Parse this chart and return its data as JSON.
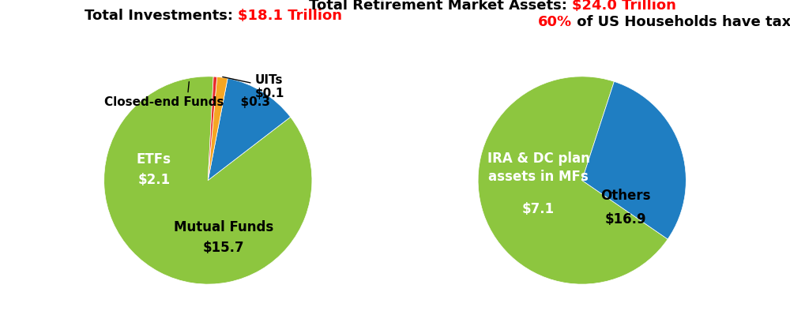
{
  "chart1": {
    "title_black": "Total Investments: ",
    "title_red": "$18.1 Trillion",
    "slices": [
      15.7,
      2.1,
      0.3,
      0.1
    ],
    "colors": [
      "#8DC63F",
      "#1F7EC2",
      "#F5A623",
      "#E82C2C"
    ],
    "labels": [
      "Mutual Funds",
      "ETFs",
      "Closed-end Funds",
      "UITs"
    ],
    "values_str": [
      "$15.7",
      "$2.1",
      "$0.3",
      "$0.1"
    ],
    "startangle": 87
  },
  "chart2": {
    "title_black1": "Total Retirement Market Assets: ",
    "title_red1": "$24.0 Trillion",
    "title_line2_red": "60%",
    "title_line2_black": " of US Households have tax-advantaged savings",
    "slices": [
      16.9,
      7.1
    ],
    "colors": [
      "#8DC63F",
      "#1F7EC2"
    ],
    "labels": [
      "Others",
      "IRA & DC plan\nassets in MFs"
    ],
    "values_str": [
      "$16.9",
      "$7.1"
    ],
    "startangle": 72
  },
  "bg_color": "#FFFFFF",
  "title_fontsize": 13,
  "label_fontsize": 12,
  "value_fontsize": 12
}
